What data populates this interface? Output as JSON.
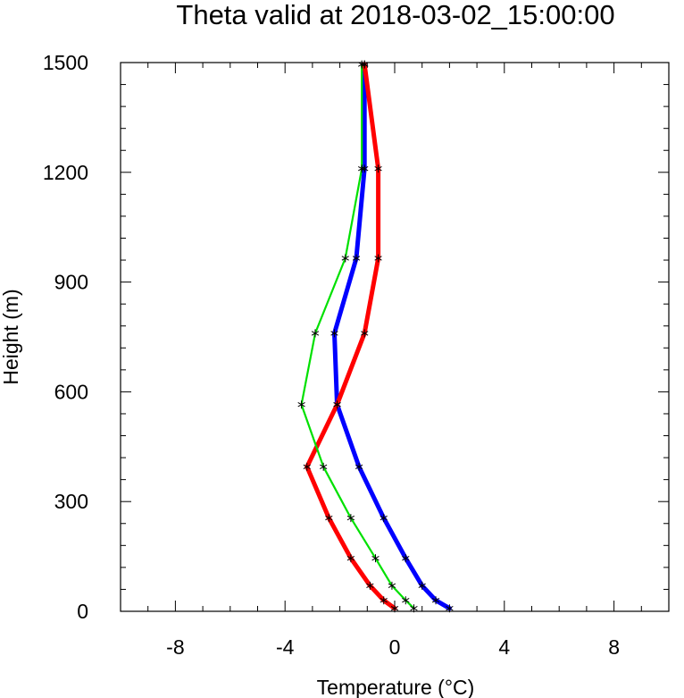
{
  "chart_data": {
    "type": "line",
    "title": "Theta valid at 2018-03-02_15:00:00",
    "xlabel": "Temperature (°C)",
    "ylabel": "Height (m)",
    "xlim": [
      -10,
      10
    ],
    "ylim": [
      0,
      1500
    ],
    "xticks": [
      -8,
      -4,
      0,
      4,
      8
    ],
    "xtick_labels": [
      "-8",
      "-4",
      "0",
      "4",
      "8"
    ],
    "yticks": [
      0,
      300,
      600,
      900,
      1200,
      1500
    ],
    "ytick_labels": [
      "0",
      "300",
      "600",
      "900",
      "1200",
      "1500"
    ],
    "grid": false,
    "legend": "none",
    "series": [
      {
        "color": "#0000ff",
        "line_width": "thick",
        "points": [
          [
            2.0,
            8
          ],
          [
            1.5,
            30
          ],
          [
            1.0,
            70
          ],
          [
            0.4,
            145
          ],
          [
            -0.4,
            255
          ],
          [
            -1.3,
            395
          ],
          [
            -2.1,
            565
          ],
          [
            -2.2,
            760
          ],
          [
            -1.4,
            965
          ],
          [
            -1.1,
            1210
          ],
          [
            -1.1,
            1495
          ]
        ]
      },
      {
        "color": "#ff0000",
        "line_width": "thick",
        "points": [
          [
            0.0,
            8
          ],
          [
            -0.4,
            30
          ],
          [
            -0.9,
            70
          ],
          [
            -1.6,
            145
          ],
          [
            -2.4,
            255
          ],
          [
            -3.2,
            395
          ],
          [
            -2.1,
            565
          ],
          [
            -1.1,
            760
          ],
          [
            -0.6,
            965
          ],
          [
            -0.6,
            1210
          ],
          [
            -1.1,
            1495
          ]
        ]
      },
      {
        "color": "#00e000",
        "line_width": "thin",
        "points": [
          [
            0.7,
            8
          ],
          [
            0.4,
            30
          ],
          [
            -0.1,
            70
          ],
          [
            -0.7,
            145
          ],
          [
            -1.6,
            255
          ],
          [
            -2.6,
            395
          ],
          [
            -3.4,
            565
          ],
          [
            -2.9,
            760
          ],
          [
            -1.8,
            965
          ],
          [
            -1.2,
            1210
          ],
          [
            -1.2,
            1495
          ]
        ]
      }
    ],
    "marker_color": "#000000"
  }
}
